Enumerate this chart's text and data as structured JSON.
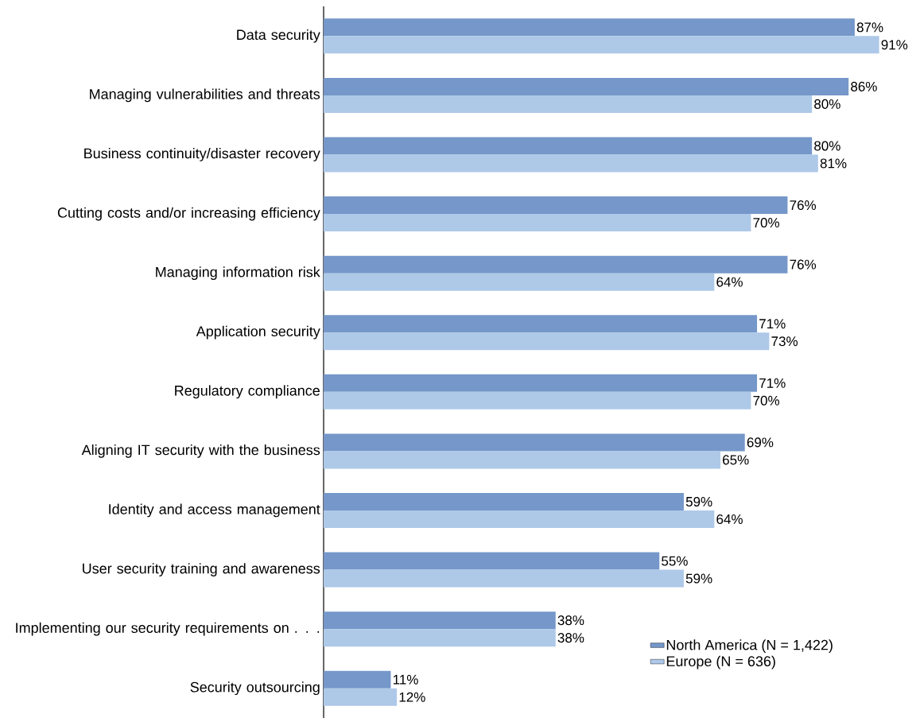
{
  "chart_data": {
    "type": "bar",
    "orientation": "horizontal",
    "categories": [
      "Data security",
      "Managing vulnerabilities and threats",
      "Business continuity/disaster recovery",
      "Cutting costs and/or increasing efficiency",
      "Managing information risk",
      "Application security",
      "Regulatory compliance",
      "Aligning IT security with the business",
      "Identity and access management",
      "User security training and awareness",
      "Implementing our security requirements on . . .",
      "Security outsourcing"
    ],
    "series": [
      {
        "name": "North America (N = 1,422)",
        "color": "#7597c9",
        "values": [
          87,
          86,
          80,
          76,
          76,
          71,
          71,
          69,
          59,
          55,
          38,
          11
        ],
        "value_labels": [
          "87%",
          "86%",
          "80%",
          "76%",
          "76%",
          "71%",
          "71%",
          "69%",
          "59%",
          "55%",
          "38%",
          "11%"
        ]
      },
      {
        "name": "Europe (N = 636)",
        "color": "#aec8e8",
        "values": [
          91,
          80,
          81,
          70,
          64,
          73,
          70,
          65,
          64,
          59,
          38,
          12
        ],
        "value_labels": [
          "91%",
          "80%",
          "81%",
          "70%",
          "64%",
          "73%",
          "70%",
          "65%",
          "64%",
          "59%",
          "38%",
          "12%"
        ]
      }
    ],
    "legend": "bottom right",
    "grid": false
  }
}
